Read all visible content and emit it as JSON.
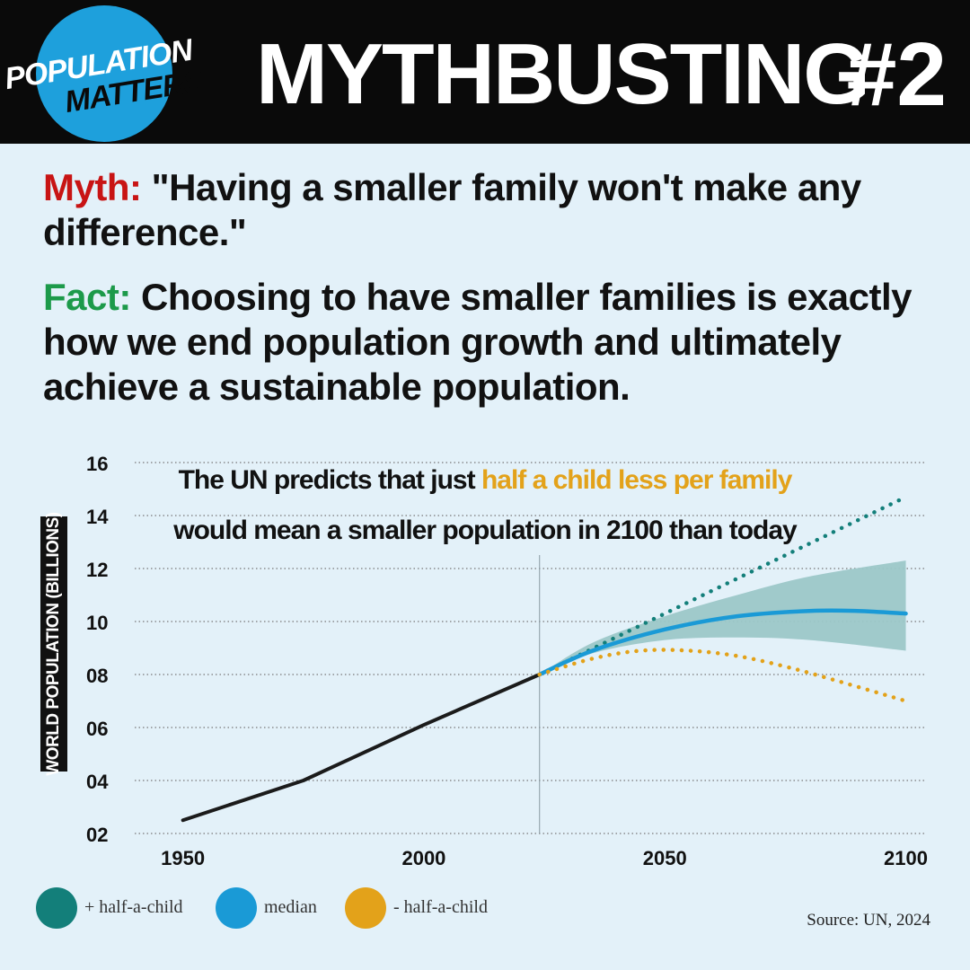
{
  "header": {
    "logo_line1_a": "POP",
    "logo_line1_b": "ULATION",
    "logo_line2": "MATTERS",
    "title": "MYTHBUSTING",
    "issue": "#2"
  },
  "myth": {
    "label": "Myth:",
    "text": "\"Having a smaller family won't make any difference.\""
  },
  "fact": {
    "label": "Fact:",
    "text": "Choosing to have smaller families is exactly how we end population growth and ultimately achieve a sustainable population."
  },
  "annotation": {
    "line1_start": "The UN predicts that just ",
    "line1_highlight": "half a child less per family",
    "line2": "would mean a smaller population in 2100 than today"
  },
  "source": "Source: UN, 2024",
  "colors": {
    "teal": "#137f7a",
    "blue": "#1a9ad6",
    "gold": "#e3a21a",
    "band": "#9cc7c8",
    "myth_red": "#c81414",
    "fact_green": "#1c9a4a"
  },
  "chart_data": {
    "type": "line",
    "title": "The UN predicts that just half a child less per family would mean a smaller population in 2100 than today",
    "xlabel": "",
    "ylabel": "WORLD POPULATION (BILLIONS)",
    "xlim": [
      1940,
      2104
    ],
    "ylim": [
      2,
      16
    ],
    "x_ticks": [
      "1950",
      "2000",
      "2050",
      "2100"
    ],
    "y_ticks": [
      "02",
      "04",
      "06",
      "08",
      "10",
      "12",
      "14",
      "16"
    ],
    "grid": "horizontal dotted",
    "legend": "bottom-left",
    "series": [
      {
        "name": "",
        "style": "solid-black",
        "x": [
          1950,
          1975,
          2000,
          2024
        ],
        "y": [
          2.5,
          4.0,
          6.1,
          8.0
        ]
      },
      {
        "name": "+ half-a-child",
        "style": "dotted",
        "x": [
          2024,
          2050,
          2075,
          2100
        ],
        "y": [
          8.0,
          10.3,
          12.5,
          14.7
        ]
      },
      {
        "name": "median",
        "style": "solid",
        "x": [
          2024,
          2035,
          2050,
          2065,
          2080,
          2090,
          2100
        ],
        "y": [
          8.0,
          8.9,
          9.7,
          10.2,
          10.4,
          10.4,
          10.3
        ]
      },
      {
        "name": "- half-a-child",
        "style": "dotted",
        "x": [
          2024,
          2035,
          2045,
          2055,
          2065,
          2075,
          2085,
          2100
        ],
        "y": [
          8.0,
          8.6,
          8.9,
          8.9,
          8.7,
          8.3,
          7.8,
          7.0
        ]
      }
    ],
    "uncertainty_band": {
      "x": [
        2024,
        2035,
        2050,
        2065,
        2080,
        2100
      ],
      "upper": [
        8.0,
        9.2,
        10.2,
        11.0,
        11.7,
        12.3
      ],
      "lower": [
        8.0,
        8.8,
        9.3,
        9.4,
        9.3,
        8.9
      ]
    },
    "reference_year": 2024
  }
}
